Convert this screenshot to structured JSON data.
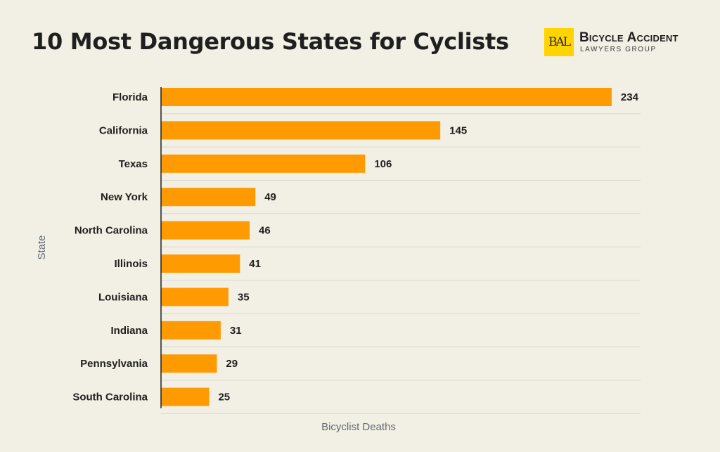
{
  "title": "10 Most Dangerous States for Cyclists",
  "logo": {
    "mark": "BAL",
    "name": "Bicycle Accident",
    "subtitle": "LAWYERS GROUP",
    "mark_color": "#ffd400"
  },
  "colors": {
    "background": "#f2efe4",
    "bar": "#ff9a00",
    "gridline": "#dcd8cc",
    "axis": "#1f1f1f"
  },
  "chart_data": {
    "type": "bar",
    "orientation": "horizontal",
    "categories": [
      "Florida",
      "California",
      "Texas",
      "New York",
      "North Carolina",
      "Illinois",
      "Louisiana",
      "Indiana",
      "Pennsylvania",
      "South Carolina"
    ],
    "values": [
      234,
      145,
      106,
      49,
      46,
      41,
      35,
      31,
      29,
      25
    ],
    "xlabel": "Bicyclist Deaths",
    "ylabel": "State",
    "xlim": [
      0,
      249
    ],
    "data_labels": true,
    "grid": true
  }
}
